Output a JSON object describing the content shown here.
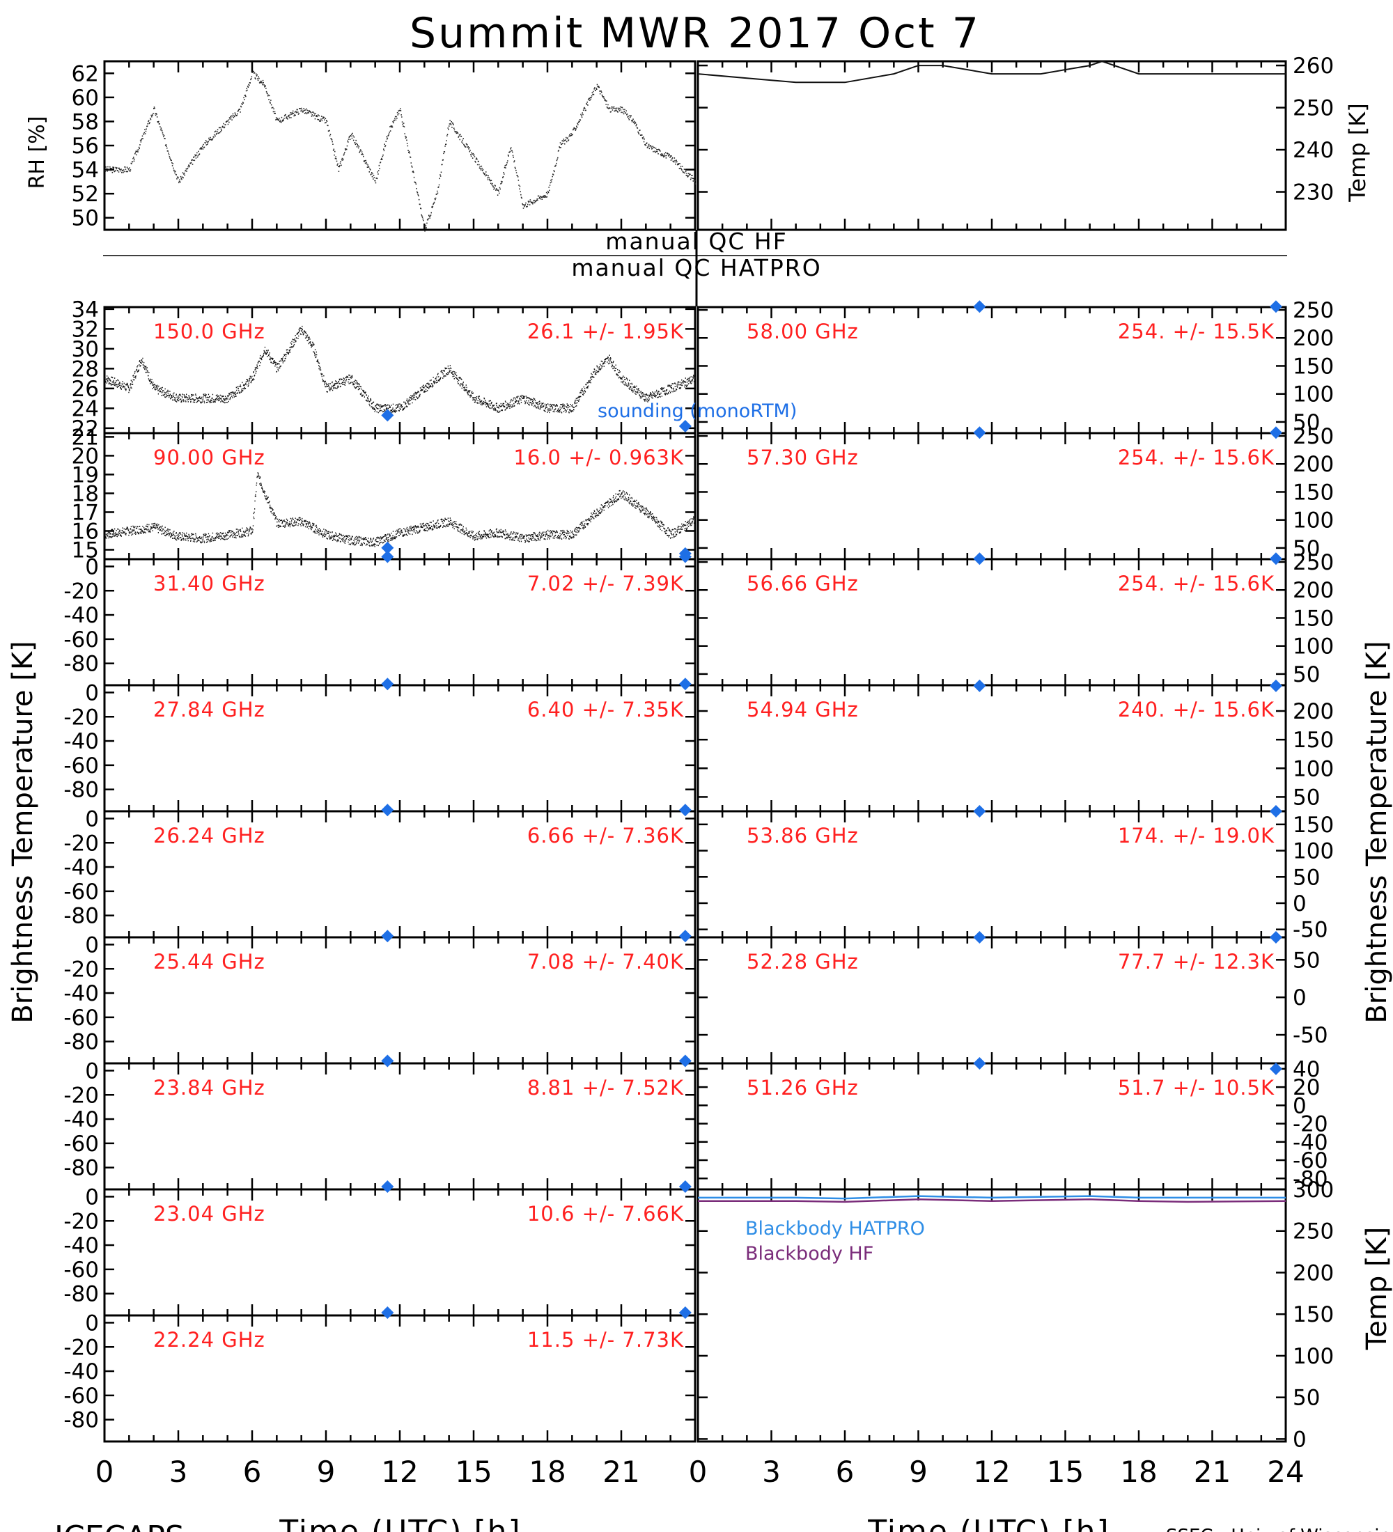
{
  "title": "Summit MWR 2017 Oct  7",
  "footer": {
    "left": "ICECAPS",
    "right": "SSEC - Univ of Wisconsin"
  },
  "labels": {
    "xlabel": "Time (UTC) [h]",
    "rh_ylabel": "RH [%]",
    "temp_ylabel": "Temp [K]",
    "bt_ylabel": "Brightness Temperature [K]",
    "bb_ylabel": "Temp [K]",
    "qc_hf": "manual QC HF",
    "qc_hatpro": "manual QC HATPRO",
    "sounding": "sounding (monoRTM)",
    "bb_hatpro": "Blackbody HATPRO",
    "bb_hf": "Blackbody HF"
  },
  "colors": {
    "annotation": "#ff2020",
    "sounding": "#1e6fe6",
    "bb_hatpro": "#2f8ee6",
    "bb_hf": "#7a2c7a",
    "axes": "#000000"
  },
  "chart_data": [
    {
      "type": "line",
      "id": "rh",
      "ylabel": "RH [%]",
      "xlim": [
        0,
        24
      ],
      "ylim": [
        49,
        63
      ],
      "yticks": [
        50,
        52,
        54,
        56,
        58,
        60,
        62
      ],
      "x": [
        0,
        1,
        2,
        2.5,
        3,
        4,
        5,
        5.5,
        6,
        6.5,
        7,
        8,
        9,
        9.5,
        10,
        11,
        11.5,
        12,
        12.5,
        13,
        13.5,
        14,
        15,
        16,
        16.5,
        17,
        18,
        18.5,
        19,
        20,
        20.5,
        21,
        21.5,
        22,
        23,
        24
      ],
      "values": [
        54,
        54,
        59,
        56,
        53,
        56,
        58,
        59,
        62,
        61,
        58,
        59,
        58,
        54,
        57,
        53,
        57,
        59,
        54,
        49,
        52,
        58,
        55,
        52,
        56,
        51,
        52,
        56,
        57,
        61,
        59,
        59,
        58,
        56,
        55,
        53
      ]
    },
    {
      "type": "line",
      "id": "temp",
      "ylabel": "Temp [K]",
      "xlim": [
        0,
        24
      ],
      "ylim": [
        221,
        261
      ],
      "yticks": [
        230,
        240,
        250,
        260
      ],
      "x": [
        0,
        2,
        4,
        6,
        8,
        9,
        10,
        12,
        14,
        16,
        16.5,
        18,
        20,
        22,
        24
      ],
      "values": [
        258,
        257,
        256,
        256,
        258,
        260,
        260,
        258,
        258,
        260,
        261,
        258,
        258,
        258,
        258
      ]
    },
    {
      "type": "scatter",
      "id": "hf-150",
      "freq": "150.0 GHz",
      "stats": "26.1 +/- 1.95K",
      "ylim": [
        21.5,
        34.2
      ],
      "yticks": [
        22,
        24,
        26,
        28,
        30,
        32,
        34
      ],
      "x": [
        0,
        1,
        1.5,
        2,
        3,
        4,
        5,
        6,
        6.5,
        7,
        7.5,
        8,
        8.5,
        9,
        10,
        11,
        12,
        13,
        14,
        15,
        16,
        17,
        18,
        19,
        19.5,
        20,
        20.5,
        21,
        22,
        23,
        24
      ],
      "values": [
        27,
        26,
        29,
        26,
        25,
        25,
        25,
        27,
        30,
        28,
        30,
        32,
        30,
        26,
        27,
        24,
        24,
        26,
        28,
        25,
        24,
        25,
        24,
        24,
        26,
        28,
        29,
        27,
        25,
        26,
        27
      ],
      "sounding": [
        [
          11.5,
          23.3
        ],
        [
          23.6,
          22.2
        ]
      ]
    },
    {
      "type": "scatter",
      "id": "hf-90",
      "freq": "90.00 GHz",
      "stats": "16.0 +/- 0.963K",
      "ylim": [
        14.5,
        21.2
      ],
      "yticks": [
        15,
        16,
        17,
        18,
        19,
        20,
        21
      ],
      "x": [
        0,
        1,
        2,
        3,
        4,
        5,
        6,
        6.2,
        7,
        8,
        9,
        10,
        11,
        12,
        13,
        14,
        15,
        16,
        17,
        18,
        19,
        20,
        21,
        22,
        23,
        24
      ],
      "values": [
        15.8,
        16,
        16.2,
        15.7,
        15.6,
        15.8,
        16,
        19,
        16.4,
        16.5,
        15.8,
        15.5,
        15.4,
        15.9,
        16.2,
        16.5,
        15.7,
        15.9,
        15.6,
        15.8,
        15.8,
        17,
        18,
        17,
        15.8,
        16.6
      ],
      "sounding": [
        [
          11.5,
          15.1
        ],
        [
          23.6,
          14.8
        ]
      ]
    },
    {
      "type": "scatter",
      "id": "hp-31.40",
      "freq": "31.40 GHz",
      "stats": "7.02 +/- 7.39K",
      "ylim": [
        -98,
        6
      ],
      "yticks": [
        0,
        -20,
        -40,
        -60,
        -80
      ],
      "sounding": [
        [
          11.5,
          8
        ],
        [
          23.6,
          8
        ]
      ]
    },
    {
      "type": "scatter",
      "id": "hp-27.84",
      "freq": "27.84 GHz",
      "stats": "6.40 +/- 7.35K",
      "ylim": [
        -98,
        6
      ],
      "yticks": [
        0,
        -20,
        -40,
        -60,
        -80
      ],
      "sounding": [
        [
          11.5,
          7
        ],
        [
          23.6,
          7
        ]
      ]
    },
    {
      "type": "scatter",
      "id": "hp-26.24",
      "freq": "26.24 GHz",
      "stats": "6.66 +/- 7.36K",
      "ylim": [
        -98,
        6
      ],
      "yticks": [
        0,
        -20,
        -40,
        -60,
        -80
      ],
      "sounding": [
        [
          11.5,
          7
        ],
        [
          23.6,
          7
        ]
      ]
    },
    {
      "type": "scatter",
      "id": "hp-25.44",
      "freq": "25.44 GHz",
      "stats": "7.08 +/- 7.40K",
      "ylim": [
        -98,
        6
      ],
      "yticks": [
        0,
        -20,
        -40,
        -60,
        -80
      ],
      "sounding": [
        [
          11.5,
          7
        ],
        [
          23.6,
          7
        ]
      ]
    },
    {
      "type": "scatter",
      "id": "hp-23.84",
      "freq": "23.84 GHz",
      "stats": "8.81 +/- 7.52K",
      "ylim": [
        -98,
        6
      ],
      "yticks": [
        0,
        -20,
        -40,
        -60,
        -80
      ],
      "sounding": [
        [
          11.5,
          8
        ],
        [
          23.6,
          8
        ]
      ]
    },
    {
      "type": "scatter",
      "id": "hp-23.04",
      "freq": "23.04 GHz",
      "stats": "10.6 +/- 7.66K",
      "ylim": [
        -98,
        6
      ],
      "yticks": [
        0,
        -20,
        -40,
        -60,
        -80
      ],
      "sounding": [
        [
          11.5,
          10
        ],
        [
          23.6,
          10
        ]
      ]
    },
    {
      "type": "scatter",
      "id": "hp-22.24",
      "freq": "22.24 GHz",
      "stats": "11.5 +/- 7.73K",
      "ylim": [
        -98,
        6
      ],
      "yticks": [
        0,
        -20,
        -40,
        -60,
        -80
      ],
      "sounding": [
        [
          11.5,
          11
        ],
        [
          23.6,
          11
        ]
      ]
    },
    {
      "type": "scatter",
      "id": "hp-58.00",
      "freq": "58.00 GHz",
      "stats": "254. +/- 15.5K",
      "ylim": [
        30,
        255
      ],
      "yticks": [
        250,
        200,
        150,
        100,
        50
      ],
      "sounding": [
        [
          11.5,
          256
        ],
        [
          23.6,
          256
        ]
      ]
    },
    {
      "type": "scatter",
      "id": "hp-57.30",
      "freq": "57.30 GHz",
      "stats": "254. +/- 15.6K",
      "ylim": [
        30,
        255
      ],
      "yticks": [
        250,
        200,
        150,
        100,
        50
      ],
      "sounding": [
        [
          11.5,
          256
        ],
        [
          23.6,
          256
        ]
      ]
    },
    {
      "type": "scatter",
      "id": "hp-56.66",
      "freq": "56.66 GHz",
      "stats": "254. +/- 15.6K",
      "ylim": [
        30,
        255
      ],
      "yticks": [
        250,
        200,
        150,
        100,
        50
      ],
      "sounding": [
        [
          11.5,
          256
        ],
        [
          23.6,
          256
        ]
      ]
    },
    {
      "type": "scatter",
      "id": "hp-54.94",
      "freq": "54.94 GHz",
      "stats": "240. +/- 15.6K",
      "ylim": [
        25,
        245
      ],
      "yticks": [
        200,
        150,
        100,
        50
      ],
      "sounding": [
        [
          11.5,
          244
        ],
        [
          23.6,
          244
        ]
      ]
    },
    {
      "type": "scatter",
      "id": "hp-53.86",
      "freq": "53.86 GHz",
      "stats": "174. +/- 19.0K",
      "ylim": [
        -65,
        175
      ],
      "yticks": [
        150,
        100,
        50,
        0,
        -50
      ],
      "sounding": [
        [
          11.5,
          175
        ],
        [
          23.6,
          175
        ]
      ]
    },
    {
      "type": "scatter",
      "id": "hp-52.28",
      "freq": "52.28 GHz",
      "stats": "77.7 +/- 12.3K",
      "ylim": [
        -88,
        80
      ],
      "yticks": [
        50,
        0,
        -50
      ],
      "sounding": [
        [
          11.5,
          80
        ],
        [
          23.6,
          80
        ]
      ]
    },
    {
      "type": "scatter",
      "id": "hp-51.26",
      "freq": "51.26 GHz",
      "stats": "51.7 +/- 10.5K",
      "ylim": [
        -92,
        46
      ],
      "yticks": [
        40,
        20,
        0,
        -20,
        -40,
        -60,
        -80
      ],
      "sounding": [
        [
          11.5,
          46
        ],
        [
          23.6,
          40
        ]
      ]
    },
    {
      "type": "line",
      "id": "blackbody",
      "ylabel": "Temp [K]",
      "xlim": [
        0,
        24
      ],
      "ylim": [
        -3,
        300
      ],
      "yticks": [
        300,
        250,
        200,
        150,
        100,
        50,
        0
      ],
      "series": [
        {
          "name": "Blackbody HATPRO",
          "x": [
            0,
            4,
            6,
            9,
            12,
            14,
            16,
            18,
            20,
            24
          ],
          "values": [
            290,
            290,
            289,
            292,
            290,
            291,
            292,
            290,
            290,
            290
          ]
        },
        {
          "name": "Blackbody HF",
          "x": [
            0,
            4,
            6,
            9,
            12,
            14,
            16,
            18,
            20,
            24
          ],
          "values": [
            286,
            286,
            285,
            288,
            286,
            287,
            288,
            286,
            285,
            286
          ]
        }
      ]
    }
  ],
  "xticks": [
    "0",
    "3",
    "6",
    "9",
    "12",
    "15",
    "18",
    "21",
    "24"
  ]
}
